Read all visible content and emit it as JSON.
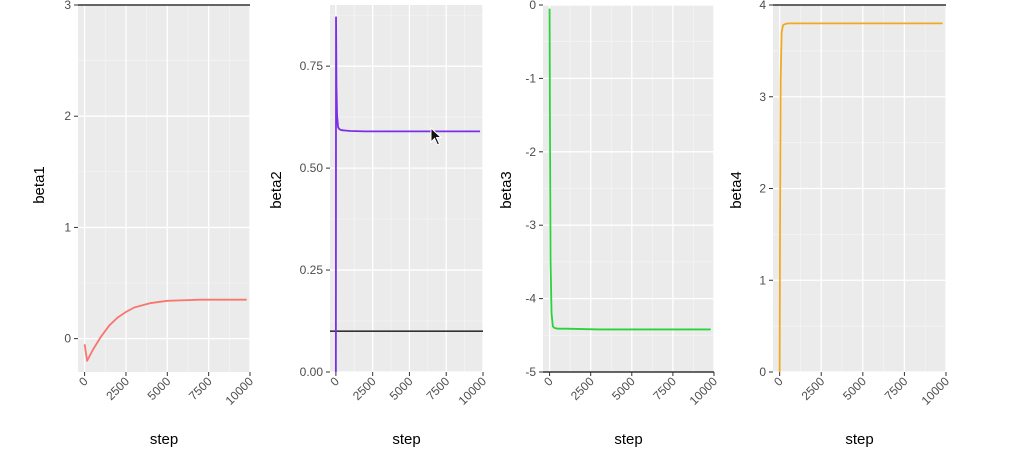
{
  "chart_data": [
    {
      "type": "line",
      "xlabel": "step",
      "ylabel": "beta1",
      "xlim": [
        -400,
        10000
      ],
      "ylim": [
        -0.3,
        3
      ],
      "x_ticks": [
        0,
        2500,
        5000,
        7500,
        10000
      ],
      "x_tick_labels": [
        "0",
        "2500",
        "5000",
        "7500",
        "10000"
      ],
      "y_ticks": [
        0,
        1,
        2,
        3
      ],
      "y_tick_labels": [
        "0",
        "1",
        "2",
        "3"
      ],
      "grid": true,
      "reference_line": 3,
      "series": [
        {
          "color": "#f8766d",
          "x": [
            0,
            150,
            500,
            1000,
            1500,
            2000,
            2500,
            3000,
            3500,
            4000,
            5000,
            6000,
            7000,
            8000,
            9000,
            9800
          ],
          "y": [
            -0.05,
            -0.2,
            -0.1,
            0.02,
            0.12,
            0.19,
            0.24,
            0.28,
            0.3,
            0.32,
            0.34,
            0.345,
            0.35,
            0.35,
            0.35,
            0.35
          ]
        }
      ]
    },
    {
      "type": "line",
      "xlabel": "step",
      "ylabel": "beta2",
      "xlim": [
        -400,
        10000
      ],
      "ylim": [
        0,
        0.9
      ],
      "x_ticks": [
        0,
        2500,
        5000,
        7500,
        10000
      ],
      "x_tick_labels": [
        "0",
        "2500",
        "5000",
        "7500",
        "10000"
      ],
      "y_ticks": [
        0,
        0.25,
        0.5,
        0.75
      ],
      "y_tick_labels": [
        "0.00",
        "0.25",
        "0.50",
        "0.75"
      ],
      "grid": true,
      "reference_line": 0.1,
      "series": [
        {
          "color": "#7a2fe6",
          "x": [
            0,
            10,
            40,
            80,
            150,
            250,
            400,
            700,
            1000,
            2000,
            4000,
            6000,
            8000,
            9800
          ],
          "y": [
            0,
            0.87,
            0.7,
            0.63,
            0.6,
            0.595,
            0.593,
            0.592,
            0.591,
            0.59,
            0.59,
            0.59,
            0.59,
            0.59
          ]
        }
      ]
    },
    {
      "type": "line",
      "xlabel": "step",
      "ylabel": "beta3",
      "xlim": [
        -400,
        10000
      ],
      "ylim": [
        -5,
        0
      ],
      "x_ticks": [
        0,
        2500,
        5000,
        7500,
        10000
      ],
      "x_tick_labels": [
        "0",
        "2500",
        "5000",
        "7500",
        "10000"
      ],
      "y_ticks": [
        -5,
        -4,
        -3,
        -2,
        -1,
        0
      ],
      "y_tick_labels": [
        "-5",
        "-4",
        "-3",
        "-2",
        "-1",
        "0"
      ],
      "grid": true,
      "reference_line": -5,
      "series": [
        {
          "color": "#2bd33a",
          "x": [
            0,
            20,
            60,
            120,
            200,
            300,
            500,
            1000,
            3000,
            6000,
            9800
          ],
          "y": [
            -0.05,
            -1.5,
            -3.5,
            -4.2,
            -4.38,
            -4.4,
            -4.41,
            -4.41,
            -4.42,
            -4.42,
            -4.42
          ]
        }
      ]
    },
    {
      "type": "line",
      "xlabel": "step",
      "ylabel": "beta4",
      "xlim": [
        -400,
        10000
      ],
      "ylim": [
        0,
        4
      ],
      "x_ticks": [
        0,
        2500,
        5000,
        7500,
        10000
      ],
      "x_tick_labels": [
        "0",
        "2500",
        "5000",
        "7500",
        "10000"
      ],
      "y_ticks": [
        0,
        1,
        2,
        3,
        4
      ],
      "y_tick_labels": [
        "0",
        "1",
        "2",
        "3",
        "4"
      ],
      "grid": true,
      "reference_line": 4,
      "series": [
        {
          "color": "#f2a922",
          "x": [
            0,
            20,
            60,
            120,
            200,
            300,
            500,
            1000,
            3000,
            6000,
            9800
          ],
          "y": [
            0,
            1.5,
            3.2,
            3.7,
            3.78,
            3.79,
            3.8,
            3.8,
            3.8,
            3.8,
            3.8
          ]
        }
      ]
    }
  ]
}
